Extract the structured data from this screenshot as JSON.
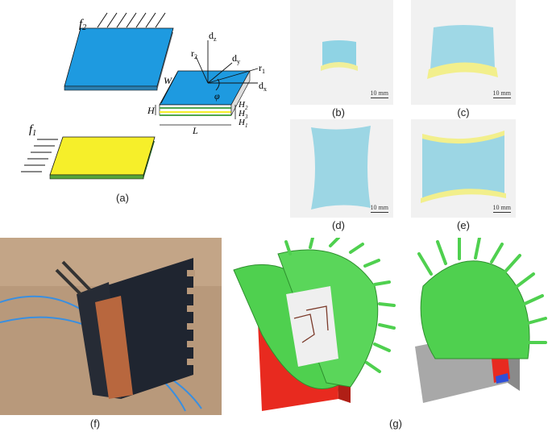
{
  "captions": {
    "a": "(a)",
    "b": "(b)",
    "c": "(c)",
    "d": "(d)",
    "e": "(e)",
    "f": "(f)",
    "g": "(g)"
  },
  "diagram_labels": {
    "f2": "f",
    "f2_sub": "2",
    "f1": "f",
    "f1_sub": "1",
    "dz": "d",
    "dz_sub": "z",
    "dy": "d",
    "dy_sub": "y",
    "dx": "d",
    "dx_sub": "x",
    "r1": "r",
    "r1_sub": "1",
    "r2": "r",
    "r2_sub": "2",
    "phi": "φ",
    "W": "W",
    "L": "L",
    "H": "H",
    "H2": "H",
    "H2_sub": "2",
    "H3": "H",
    "H3_sub": "3",
    "H1": "H",
    "H1_sub": "1"
  },
  "scale_bar_label": "10 mm",
  "colors": {
    "blue_layer": "#1e9ae0",
    "yellow_layer": "#f6ef2a",
    "green_leaf": "#4fd04f",
    "red_base": "#e82a1f",
    "gray_base": "#a8a8a8",
    "photo_bg": "#f1f1f1"
  },
  "icons": {
    "force_arrows": "double-headed-arrows",
    "axes": "coordinate-frame"
  }
}
